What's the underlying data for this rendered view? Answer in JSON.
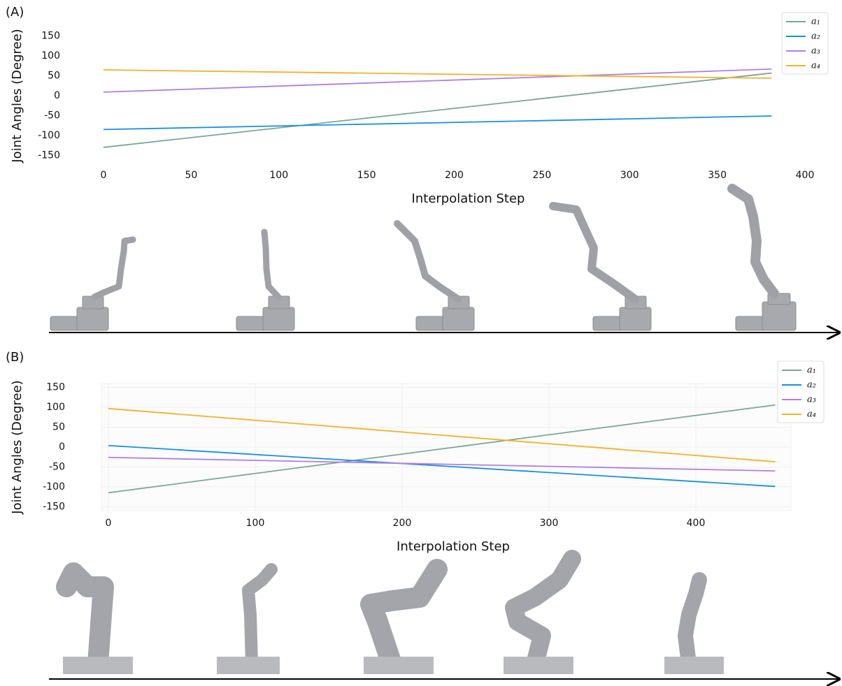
{
  "chart_data": [
    {
      "type": "line",
      "panel_label": "(A)",
      "x_label": "Interpolation Step",
      "y_label": "Joint Angles (Degree)",
      "x": [
        0,
        381
      ],
      "xlim": [
        0,
        400
      ],
      "xticks": [
        0,
        50,
        100,
        150,
        200,
        250,
        300,
        350,
        400
      ],
      "ylim": [
        -160,
        160
      ],
      "yticks": [
        -150,
        -100,
        -50,
        0,
        50,
        100,
        150
      ],
      "grid": false,
      "legend": "upper right",
      "series": [
        {
          "name": "a₁",
          "color": "#7aa595",
          "values": [
            -130,
            57
          ]
        },
        {
          "name": "a₂",
          "color": "#1a8fe3",
          "values": [
            -85,
            -51
          ]
        },
        {
          "name": "a₃",
          "color": "#b07fe0",
          "values": [
            9,
            67
          ]
        },
        {
          "name": "a₄",
          "color": "#f5b02a",
          "values": [
            65,
            44
          ]
        }
      ]
    },
    {
      "type": "line",
      "panel_label": "(B)",
      "x_label": "Interpolation Step",
      "y_label": "Joint Angles (Degree)",
      "x": [
        0,
        454
      ],
      "xlim": [
        0,
        460
      ],
      "xticks": [
        0,
        100,
        200,
        300,
        400
      ],
      "ylim": [
        -160,
        160
      ],
      "yticks": [
        -150,
        -100,
        -50,
        0,
        50,
        100,
        150
      ],
      "grid": true,
      "legend": "upper right",
      "series": [
        {
          "name": "a₁",
          "color": "#7aa595",
          "values": [
            -115,
            106
          ]
        },
        {
          "name": "a₂",
          "color": "#1a8fe3",
          "values": [
            4,
            -99
          ]
        },
        {
          "name": "a₃",
          "color": "#b07fe0",
          "values": [
            -26,
            -60
          ]
        },
        {
          "name": "a₄",
          "color": "#f5b02a",
          "values": [
            97,
            -37
          ]
        }
      ]
    }
  ]
}
